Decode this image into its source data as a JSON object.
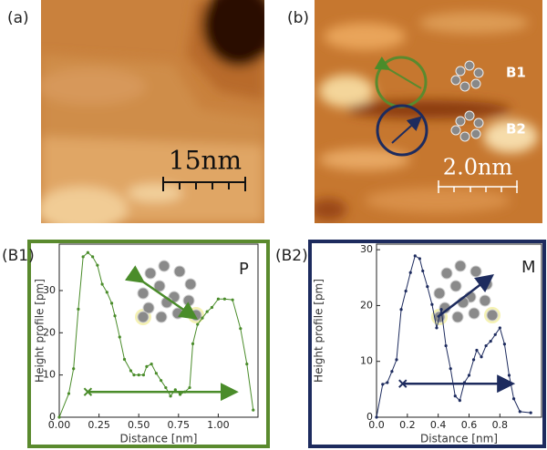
{
  "panels": {
    "a": {
      "label": "(a)",
      "scale": "15nm"
    },
    "b": {
      "label": "(b)",
      "scale": "2.0nm",
      "b1": "B1",
      "b2": "B2"
    }
  },
  "chart_data": [
    {
      "type": "line",
      "annotations": [
        "(B1)",
        "P"
      ],
      "color": "#4a8c2a",
      "frame_color": "#5a8a2e",
      "xlabel": "Distance [nm]",
      "ylabel": "Height profile [pm]",
      "xlim": [
        0,
        1.25
      ],
      "ylim": [
        0,
        41
      ],
      "xticks": [
        {
          "value": 0,
          "label": "0.00"
        },
        0.25,
        {
          "value": 0.5,
          "label": "0.50"
        },
        0.75,
        {
          "value": 1,
          "label": "1.00"
        }
      ],
      "yticks": [
        0,
        10,
        20,
        30
      ],
      "x": [
        0,
        0.06,
        0.09,
        0.12,
        0.15,
        0.18,
        0.21,
        0.24,
        0.27,
        0.3,
        0.33,
        0.35,
        0.38,
        0.41,
        0.45,
        0.47,
        0.5,
        0.53,
        0.55,
        0.58,
        0.61,
        0.64,
        0.67,
        0.7,
        0.73,
        0.76,
        0.79,
        0.82,
        0.84,
        0.87,
        0.9,
        0.93,
        0.96,
        1.0,
        1.04,
        1.09,
        1.14,
        1.18,
        1.22
      ],
      "values": [
        0,
        5.6,
        11.5,
        25.6,
        38,
        39,
        38,
        36,
        31.5,
        29.6,
        27,
        24,
        19,
        13.7,
        11,
        10,
        10,
        10,
        12,
        12.6,
        10.4,
        8.7,
        7,
        5,
        6.5,
        5.4,
        6,
        7,
        17.4,
        22,
        23.5,
        25,
        26,
        28,
        28,
        27.8,
        21,
        12.6,
        1.7
      ]
    },
    {
      "type": "line",
      "annotations": [
        "(B2)",
        "M"
      ],
      "color": "#1d2b5e",
      "frame_color": "#1d2b5e",
      "xlabel": "Distance [nm]",
      "ylabel": "Height profile [pm]",
      "xlim": [
        0,
        1.07
      ],
      "ylim": [
        0,
        31
      ],
      "xticks": [
        {
          "value": 0,
          "label": "0.0"
        },
        0.2,
        0.4,
        0.6,
        0.8
      ],
      "yticks": [
        0,
        10,
        20,
        30
      ],
      "x": [
        0,
        0.04,
        0.07,
        0.1,
        0.13,
        0.16,
        0.19,
        0.22,
        0.25,
        0.28,
        0.3,
        0.33,
        0.36,
        0.39,
        0.42,
        0.45,
        0.48,
        0.51,
        0.54,
        0.57,
        0.6,
        0.63,
        0.65,
        0.68,
        0.71,
        0.74,
        0.77,
        0.8,
        0.83,
        0.86,
        0.89,
        0.93,
        1.0
      ],
      "values": [
        0,
        5.9,
        6.2,
        8.2,
        10.3,
        19.3,
        22.6,
        25.9,
        28.9,
        28.4,
        26.2,
        23.4,
        20.2,
        16,
        19.3,
        12.8,
        8.7,
        3.8,
        3,
        6.2,
        7.5,
        10.3,
        12,
        10.8,
        12.8,
        13.6,
        14.8,
        16,
        13.1,
        7.5,
        3.3,
        1,
        0.8
      ]
    }
  ]
}
